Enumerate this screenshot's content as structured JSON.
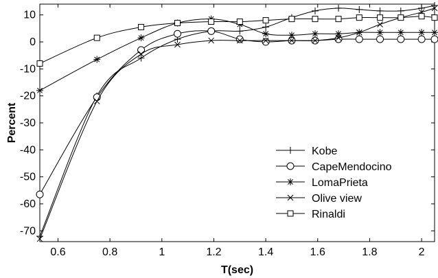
{
  "chart_data": {
    "type": "line",
    "xlabel": "T(sec)",
    "ylabel": "Percent",
    "xlim": [
      0.53,
      2.05
    ],
    "ylim": [
      -74,
      14
    ],
    "xticks": [
      0.6,
      0.8,
      1.0,
      1.2,
      1.4,
      1.6,
      1.8,
      2.0
    ],
    "xtick_labels": [
      "0.6",
      "0.8",
      "1",
      "1.2",
      "1.4",
      "1.6",
      "1.8",
      "2"
    ],
    "yticks": [
      10,
      0,
      -10,
      -20,
      -30,
      -40,
      -50,
      -60,
      -70
    ],
    "ytick_labels": [
      "10",
      "0",
      "-10",
      "-20",
      "-30",
      "-40",
      "-50",
      "-60",
      "-70"
    ],
    "grid": false,
    "legend_position": "center-right",
    "series": [
      {
        "name": "Kobe",
        "marker": "plus",
        "x": [
          0.53,
          0.75,
          0.92,
          1.06,
          1.19,
          1.3,
          1.4,
          1.5,
          1.59,
          1.68,
          1.76,
          1.84,
          1.92,
          2.0,
          2.05
        ],
        "y": [
          -72,
          -20,
          -6,
          1,
          4,
          4,
          5.5,
          9,
          11.5,
          12.5,
          12,
          11.5,
          11.5,
          12.5,
          13.5
        ]
      },
      {
        "name": "CapeMendocino",
        "marker": "circle",
        "x": [
          0.53,
          0.75,
          0.92,
          1.06,
          1.19,
          1.3,
          1.4,
          1.5,
          1.59,
          1.68,
          1.76,
          1.84,
          1.92,
          2.0,
          2.05
        ],
        "y": [
          -56.5,
          -20.5,
          -3,
          3,
          4,
          1,
          0,
          0.5,
          0.5,
          1,
          1,
          1,
          1,
          1,
          1
        ]
      },
      {
        "name": "LomaPrieta",
        "marker": "asterisk",
        "x": [
          0.53,
          0.75,
          0.92,
          1.06,
          1.19,
          1.3,
          1.4,
          1.5,
          1.59,
          1.68,
          1.76,
          1.84,
          1.92,
          2.0,
          2.05
        ],
        "y": [
          -18,
          -6.5,
          1.5,
          7,
          8.5,
          6.5,
          3,
          2.5,
          3,
          3,
          3.5,
          3.5,
          3.5,
          3.5,
          3.5
        ]
      },
      {
        "name": "Olive view",
        "marker": "x",
        "x": [
          0.53,
          0.75,
          0.92,
          1.06,
          1.19,
          1.3,
          1.4,
          1.5,
          1.59,
          1.68,
          1.76,
          1.84,
          1.92,
          2.0,
          2.05
        ],
        "y": [
          -73,
          -22,
          -4.5,
          -1,
          0.5,
          0.5,
          0.5,
          0.5,
          0.5,
          1.5,
          3.5,
          6.5,
          9,
          11,
          12.5
        ]
      },
      {
        "name": "Rinaldi",
        "marker": "square",
        "x": [
          0.53,
          0.75,
          0.92,
          1.06,
          1.19,
          1.3,
          1.4,
          1.5,
          1.59,
          1.68,
          1.76,
          1.84,
          1.92,
          2.0,
          2.05
        ],
        "y": [
          -8,
          1.5,
          5.5,
          7,
          7.5,
          7.5,
          8,
          8.5,
          8.5,
          8.5,
          9,
          9,
          9,
          9.5,
          9
        ]
      }
    ]
  }
}
